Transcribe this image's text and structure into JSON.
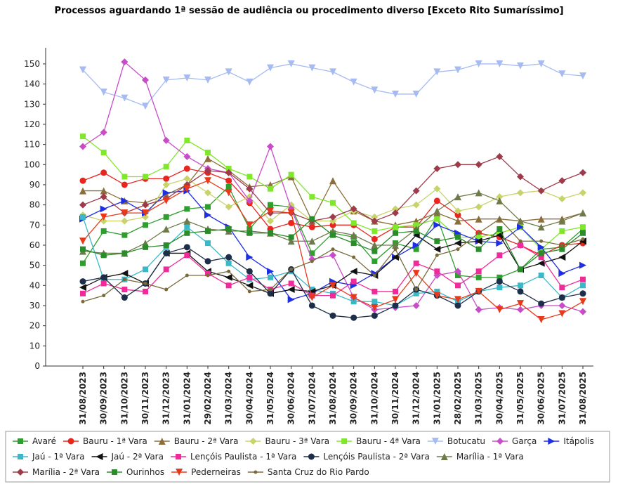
{
  "chart_data": {
    "type": "line",
    "title": "Processos aguardando 1ª sessão de audiência ou procedimento diverso [Exceto Rito Sumaríssimo]",
    "categories": [
      "31/08/2023",
      "30/09/2023",
      "31/10/2023",
      "30/11/2023",
      "31/12/2023",
      "31/01/2024",
      "29/02/2024",
      "31/03/2024",
      "30/04/2024",
      "31/05/2024",
      "30/06/2024",
      "31/07/2024",
      "31/08/2024",
      "30/09/2024",
      "31/10/2024",
      "30/11/2024",
      "31/12/2024",
      "31/01/2025",
      "28/02/2025",
      "31/03/2025",
      "30/04/2025",
      "31/05/2025",
      "30/06/2025",
      "31/07/2025",
      "31/08/2025"
    ],
    "ylim": [
      0,
      158
    ],
    "yticks": [
      0,
      10,
      20,
      30,
      40,
      50,
      60,
      70,
      80,
      90,
      100,
      110,
      120,
      130,
      140,
      150
    ],
    "grid": false,
    "series": [
      {
        "name": "Avaré",
        "color": "#2e9e2e",
        "marker": "square",
        "values": [
          51,
          67,
          65,
          70,
          74,
          78,
          79,
          89,
          68,
          80,
          79,
          56,
          66,
          64,
          52,
          61,
          58,
          74,
          45,
          44,
          44,
          48,
          58,
          59,
          68
        ]
      },
      {
        "name": "Bauru - 1ª Vara",
        "color": "#e8251f",
        "marker": "circle",
        "values": [
          92,
          96,
          90,
          93,
          93,
          98,
          96,
          92,
          81,
          68,
          71,
          69,
          70,
          70,
          63,
          69,
          69,
          82,
          75,
          66,
          64,
          60,
          55,
          60,
          61
        ]
      },
      {
        "name": "Bauru - 2ª Vara",
        "color": "#8b6e3a",
        "marker": "triangle-up",
        "values": [
          87,
          87,
          82,
          81,
          85,
          90,
          103,
          97,
          89,
          90,
          94,
          72,
          92,
          77,
          72,
          70,
          72,
          76,
          72,
          73,
          73,
          72,
          73,
          73,
          76
        ]
      },
      {
        "name": "Bauru - 3ª Vara",
        "color": "#c8d46a",
        "marker": "diamond",
        "values": [
          75,
          72,
          72,
          74,
          90,
          93,
          86,
          79,
          84,
          72,
          80,
          72,
          72,
          77,
          74,
          78,
          80,
          88,
          77,
          79,
          84,
          86,
          87,
          83,
          86
        ]
      },
      {
        "name": "Bauru - 4ª Vara",
        "color": "#7fe82a",
        "marker": "square",
        "values": [
          114,
          106,
          94,
          94,
          99,
          112,
          106,
          98,
          94,
          88,
          95,
          84,
          81,
          71,
          67,
          69,
          70,
          73,
          64,
          64,
          66,
          69,
          58,
          67,
          69
        ]
      },
      {
        "name": "Botucatu",
        "color": "#a6bbf2",
        "marker": "triangle-down",
        "values": [
          147,
          136,
          133,
          129,
          142,
          143,
          142,
          146,
          141,
          148,
          150,
          148,
          146,
          141,
          137,
          135,
          135,
          146,
          147,
          150,
          150,
          149,
          150,
          145,
          144
        ]
      },
      {
        "name": "Garça",
        "color": "#c84bc8",
        "marker": "diamond",
        "values": [
          109,
          116,
          151,
          142,
          112,
          104,
          98,
          96,
          82,
          109,
          78,
          53,
          55,
          34,
          28,
          29,
          30,
          45,
          47,
          28,
          29,
          28,
          30,
          30,
          27
        ]
      },
      {
        "name": "Itápolis",
        "color": "#1e2ee6",
        "marker": "triangle-right",
        "values": [
          73,
          78,
          82,
          76,
          86,
          87,
          75,
          69,
          54,
          47,
          33,
          36,
          42,
          40,
          46,
          54,
          60,
          70,
          66,
          62,
          61,
          69,
          59,
          46,
          50
        ]
      },
      {
        "name": "Jaú - 1ª Vara",
        "color": "#3ab8c8",
        "marker": "square",
        "values": [
          74,
          43,
          43,
          48,
          59,
          69,
          61,
          51,
          43,
          44,
          47,
          38,
          36,
          32,
          32,
          30,
          36,
          37,
          32,
          37,
          39,
          40,
          45,
          34,
          40
        ]
      },
      {
        "name": "Jaú - 2ª Vara",
        "color": "#111111",
        "marker": "triangle-left",
        "values": [
          39,
          44,
          46,
          41,
          56,
          56,
          47,
          44,
          40,
          36,
          38,
          37,
          40,
          47,
          45,
          54,
          65,
          58,
          61,
          62,
          65,
          48,
          51,
          54,
          62
        ]
      },
      {
        "name": "Lençóis Paulista - 1ª Vara",
        "color": "#f02a9a",
        "marker": "square",
        "values": [
          36,
          41,
          38,
          37,
          48,
          55,
          46,
          40,
          44,
          38,
          41,
          35,
          35,
          42,
          37,
          37,
          51,
          47,
          40,
          47,
          55,
          60,
          54,
          39,
          43
        ]
      },
      {
        "name": "Lençóis Paulista - 2ª Vara",
        "color": "#1d2e4a",
        "marker": "circle",
        "values": [
          42,
          44,
          34,
          41,
          56,
          59,
          52,
          54,
          47,
          36,
          48,
          30,
          25,
          24,
          25,
          30,
          38,
          35,
          30,
          37,
          42,
          37,
          31,
          34,
          36
        ]
      },
      {
        "name": "Marília - 1ª Vara",
        "color": "#6e7a4a",
        "marker": "triangle-up",
        "values": [
          57,
          56,
          56,
          61,
          68,
          72,
          68,
          67,
          67,
          66,
          62,
          62,
          67,
          65,
          60,
          60,
          68,
          77,
          84,
          86,
          82,
          72,
          69,
          72,
          76
        ]
      },
      {
        "name": "Marília - 2ª Vara",
        "color": "#9e3a4a",
        "marker": "diamond",
        "values": [
          80,
          84,
          76,
          80,
          83,
          90,
          97,
          96,
          88,
          76,
          76,
          72,
          74,
          78,
          72,
          76,
          87,
          98,
          100,
          100,
          104,
          94,
          87,
          92,
          96
        ]
      },
      {
        "name": "Ourinhos",
        "color": "#2a8c2a",
        "marker": "square",
        "values": [
          58,
          55,
          56,
          59,
          60,
          66,
          67,
          68,
          66,
          66,
          64,
          73,
          65,
          61,
          57,
          66,
          67,
          62,
          64,
          58,
          68,
          48,
          56,
          58,
          66
        ]
      },
      {
        "name": "Pederneiras",
        "color": "#e83a1a",
        "marker": "triangle-down",
        "values": [
          62,
          74,
          76,
          76,
          82,
          88,
          92,
          86,
          70,
          77,
          76,
          34,
          40,
          34,
          29,
          33,
          46,
          35,
          33,
          37,
          28,
          31,
          23,
          26,
          32
        ]
      },
      {
        "name": "Santa Cruz do Rio Pardo",
        "color": "#7a6a3a",
        "marker": "circle-small",
        "values": [
          32,
          35,
          43,
          41,
          38,
          45,
          45,
          47,
          37,
          38,
          48,
          52,
          58,
          54,
          45,
          58,
          38,
          55,
          58,
          66,
          73,
          62,
          62,
          60,
          63
        ]
      }
    ]
  }
}
